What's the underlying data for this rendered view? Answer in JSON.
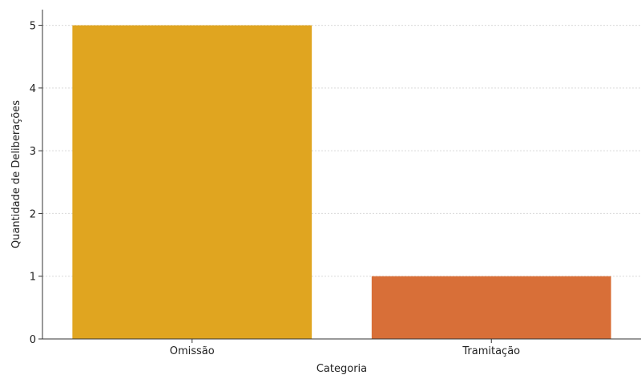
{
  "chart_data": {
    "type": "bar",
    "title": "",
    "xlabel": "Categoria",
    "ylabel": "Quantidade de Deliberações",
    "categories": [
      "Omissão",
      "Tramitação"
    ],
    "values": [
      5,
      1
    ],
    "bar_colors": [
      "#e0a520",
      "#d86f38"
    ],
    "ylim": [
      0,
      5.25
    ],
    "yticks": [
      0,
      1,
      2,
      3,
      4,
      5
    ],
    "grid": true,
    "grid_color": "#d9d9d9"
  }
}
